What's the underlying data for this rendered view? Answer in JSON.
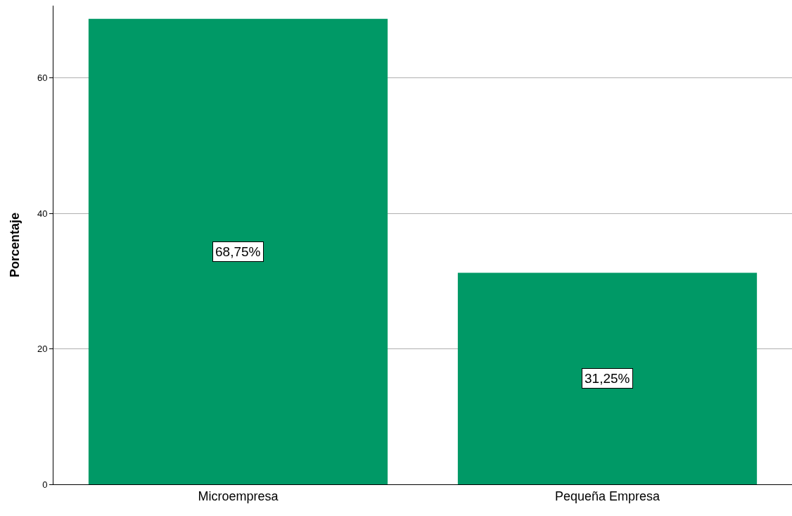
{
  "chart_data": {
    "type": "bar",
    "ylabel": "Porcentaje",
    "categories": [
      "Microempresa",
      "Pequeña Empresa"
    ],
    "values": [
      68.75,
      31.25
    ],
    "value_labels": [
      "68,75%",
      "31,25%"
    ],
    "color": "#009966",
    "ylim": [
      0,
      70.7
    ],
    "yticks": [
      0,
      20,
      40,
      60
    ],
    "grid": "y"
  }
}
